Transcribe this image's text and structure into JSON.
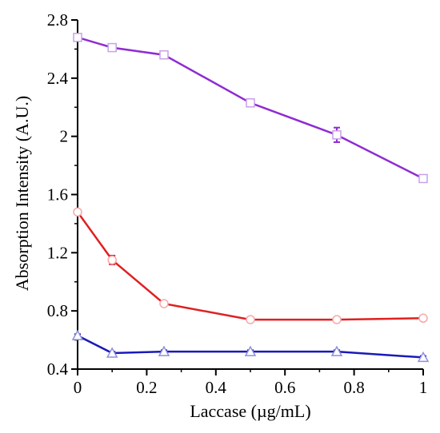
{
  "chart_data": {
    "type": "line",
    "title": "",
    "xlabel": "Laccase (µg/mL)",
    "ylabel": "Absorption Intensity (A.U.)",
    "xlim": [
      0,
      1
    ],
    "ylim": [
      0.4,
      2.8
    ],
    "xticks": [
      0,
      0.2,
      0.4,
      0.6,
      0.8,
      1
    ],
    "xtick_labels": [
      "0",
      "0.2",
      "0.4",
      "0.6",
      "0.8",
      "1"
    ],
    "yticks": [
      0.4,
      0.8,
      1.2,
      1.6,
      2.0,
      2.4,
      2.8
    ],
    "ytick_labels": [
      "0.4",
      "0.8",
      "1.2",
      "1.6",
      "2",
      "2.4",
      "2.8"
    ],
    "grid": false,
    "legend": "none",
    "series": [
      {
        "color": "#8e2bd3",
        "marker": "square",
        "x": [
          0,
          0.1,
          0.25,
          0.5,
          0.75,
          1
        ],
        "y": [
          2.68,
          2.61,
          2.56,
          2.23,
          2.01,
          1.71
        ],
        "error": [
          0.02,
          0.015,
          0.015,
          0.025,
          0.05,
          0.01
        ]
      },
      {
        "color": "#e02020",
        "marker": "circle",
        "x": [
          0,
          0.1,
          0.25,
          0.5,
          0.75,
          1
        ],
        "y": [
          1.48,
          1.15,
          0.85,
          0.74,
          0.74,
          0.75
        ],
        "error": [
          0.01,
          0.03,
          0.015,
          0.01,
          0.01,
          0.01
        ]
      },
      {
        "color": "#1a1ab8",
        "marker": "triangle",
        "x": [
          0,
          0.1,
          0.25,
          0.5,
          0.75,
          1
        ],
        "y": [
          0.63,
          0.51,
          0.52,
          0.52,
          0.52,
          0.48
        ],
        "error": [
          0.01,
          0.01,
          0.01,
          0.01,
          0.01,
          0.01
        ]
      }
    ]
  }
}
